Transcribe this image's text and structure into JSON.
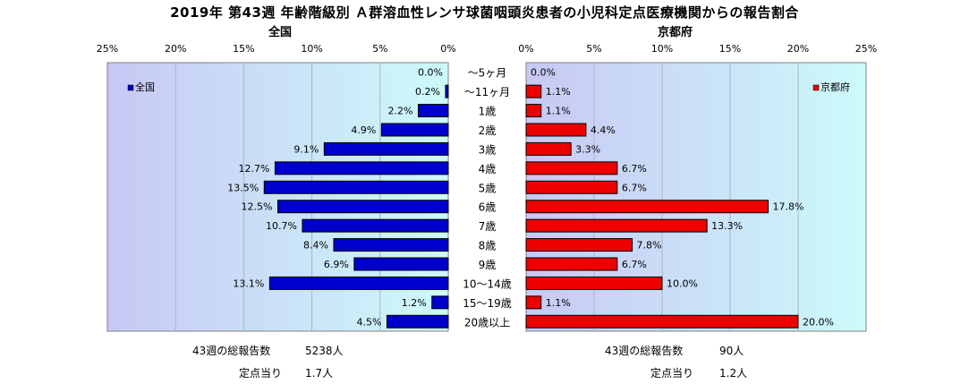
{
  "title": "2019年 第43週 年齢階級別 Ａ群溶血性レンサ球菌咽頭炎患者の小児科定点医療機関からの報告割合",
  "left_panel": {
    "subtitle": "全国",
    "legend": "全国",
    "color": "#0000cc",
    "stats": {
      "total_label": "43週の総報告数",
      "total_value": "5238人",
      "per_site_label": "定点当り",
      "per_site_value": "1.7人"
    }
  },
  "right_panel": {
    "subtitle": "京都府",
    "legend": "京都府",
    "color": "#ee0000",
    "stats": {
      "total_label": "43週の総報告数",
      "total_value": "90人",
      "per_site_label": "定点当り",
      "per_site_value": "1.2人"
    }
  },
  "chart_data": {
    "type": "bar",
    "orientation": "horizontal-butterfly",
    "categories": [
      "～5ヶ月",
      "～11ヶ月",
      "1歳",
      "2歳",
      "3歳",
      "4歳",
      "5歳",
      "6歳",
      "7歳",
      "8歳",
      "9歳",
      "10～14歳",
      "15～19歳",
      "20歳以上"
    ],
    "series": [
      {
        "name": "全国",
        "values": [
          0.0,
          0.2,
          2.2,
          4.9,
          9.1,
          12.7,
          13.5,
          12.5,
          10.7,
          8.4,
          6.9,
          13.1,
          1.2,
          4.5
        ]
      },
      {
        "name": "京都府",
        "values": [
          0.0,
          1.1,
          1.1,
          4.4,
          3.3,
          6.7,
          6.7,
          17.8,
          13.3,
          7.8,
          6.7,
          10.0,
          1.1,
          20.0
        ]
      }
    ],
    "data_labels": {
      "全国": [
        "0.0%",
        "0.2%",
        "2.2%",
        "4.9%",
        "9.1%",
        "12.7%",
        "13.5%",
        "12.5%",
        "10.7%",
        "8.4%",
        "6.9%",
        "13.1%",
        "1.2%",
        "4.5%"
      ],
      "京都府": [
        "0.0%",
        "1.1%",
        "1.1%",
        "4.4%",
        "3.3%",
        "6.7%",
        "6.7%",
        "17.8%",
        "13.3%",
        "7.8%",
        "6.7%",
        "10.0%",
        "1.1%",
        "20.0%"
      ]
    },
    "xlim": [
      0,
      25
    ],
    "x_ticks": [
      "0%",
      "5%",
      "10%",
      "15%",
      "20%",
      "25%"
    ],
    "left_x_ticks": [
      "25%",
      "20%",
      "15%",
      "10%",
      "5%",
      "0%"
    ],
    "grid": true,
    "legend_placement": [
      "top-left",
      "top-right"
    ],
    "plot_gradient": [
      "#c8c8f4",
      "#ccfafa"
    ]
  }
}
